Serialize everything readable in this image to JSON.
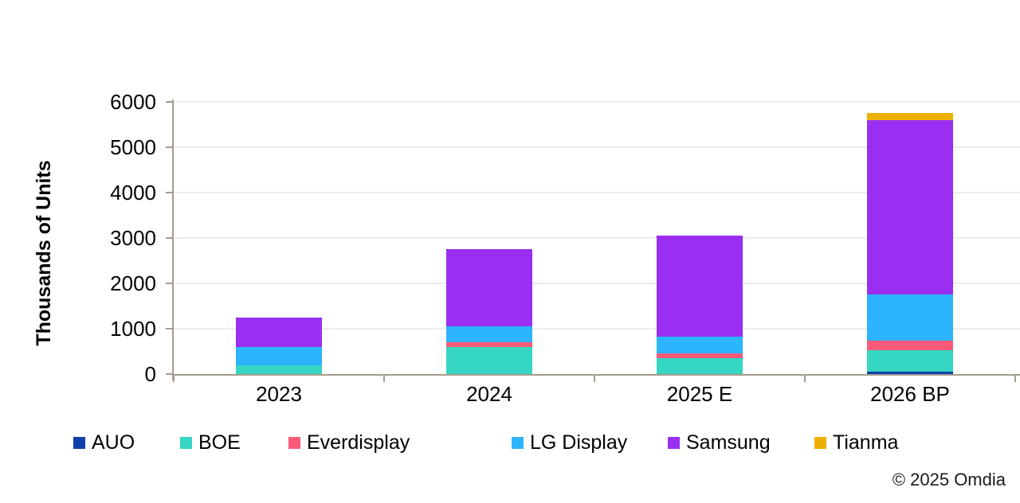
{
  "chart_data": {
    "type": "bar",
    "stacked": true,
    "title": "",
    "xlabel": "",
    "ylabel": "Thousands of Units",
    "ylim": [
      0,
      6000
    ],
    "ytick_step": 1000,
    "yticks": [
      0,
      1000,
      2000,
      3000,
      4000,
      5000,
      6000
    ],
    "grid": true,
    "legend_position": "bottom",
    "categories": [
      "2023",
      "2024",
      "2025 E",
      "2026 BP"
    ],
    "series": [
      {
        "name": "AUO",
        "color": "#0d3fa8",
        "values": [
          0,
          0,
          0,
          50
        ]
      },
      {
        "name": "BOE",
        "color": "#35d6c2",
        "values": [
          200,
          600,
          350,
          480
        ]
      },
      {
        "name": "Everdisplay",
        "color": "#fc5a78",
        "values": [
          0,
          100,
          110,
          205
        ]
      },
      {
        "name": "LG Display",
        "color": "#2cb4fd",
        "values": [
          400,
          350,
          370,
          1015
        ]
      },
      {
        "name": "Samsung",
        "color": "#9a2ff2",
        "values": [
          650,
          1700,
          2230,
          3850
        ]
      },
      {
        "name": "Tianma",
        "color": "#edb000",
        "values": [
          0,
          0,
          0,
          155
        ]
      }
    ],
    "totals": [
      1250,
      2750,
      3060,
      5755
    ]
  },
  "footer": {
    "copyright": "© 2025 Omdia"
  },
  "colors": {
    "background": "#ffffff",
    "axis": "#a59c8f",
    "gridline": "#ececec",
    "text": "#000000"
  }
}
